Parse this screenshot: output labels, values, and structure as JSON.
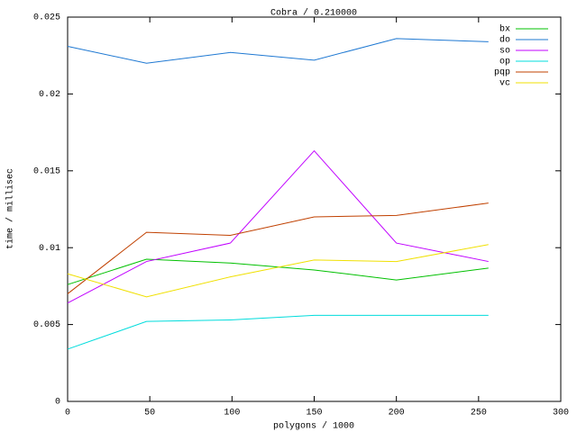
{
  "chart_data": {
    "type": "line",
    "title": "Cobra / 0.210000",
    "xlabel": "polygons / 1000",
    "ylabel": "time / millisec",
    "x": [
      0,
      48,
      99,
      150,
      200,
      256
    ],
    "series": [
      {
        "name": "bx",
        "color": "#00c000",
        "values": [
          0.0076,
          0.00925,
          0.009,
          0.00855,
          0.0079,
          0.00867
        ]
      },
      {
        "name": "do",
        "color": "#1e78d2",
        "values": [
          0.0231,
          0.022,
          0.0227,
          0.0222,
          0.0236,
          0.0234
        ]
      },
      {
        "name": "so",
        "color": "#c000ff",
        "values": [
          0.0064,
          0.0091,
          0.0103,
          0.0163,
          0.0103,
          0.0091
        ]
      },
      {
        "name": "op",
        "color": "#00dcdc",
        "values": [
          0.0034,
          0.0052,
          0.0053,
          0.0056,
          0.0056,
          0.0056
        ]
      },
      {
        "name": "pqp",
        "color": "#c04000",
        "values": [
          0.007,
          0.011,
          0.0108,
          0.012,
          0.0121,
          0.0129
        ]
      },
      {
        "name": "vc",
        "color": "#f0e000",
        "values": [
          0.0083,
          0.0068,
          0.0081,
          0.0092,
          0.0091,
          0.0102
        ]
      }
    ],
    "xlim": [
      0,
      300
    ],
    "xticks": [
      0,
      50,
      100,
      150,
      200,
      250,
      300
    ],
    "ylim": [
      0,
      0.025
    ],
    "yticks": [
      0,
      0.005,
      0.01,
      0.015,
      0.02,
      0.025
    ],
    "grid": false,
    "legend": "top-right"
  }
}
